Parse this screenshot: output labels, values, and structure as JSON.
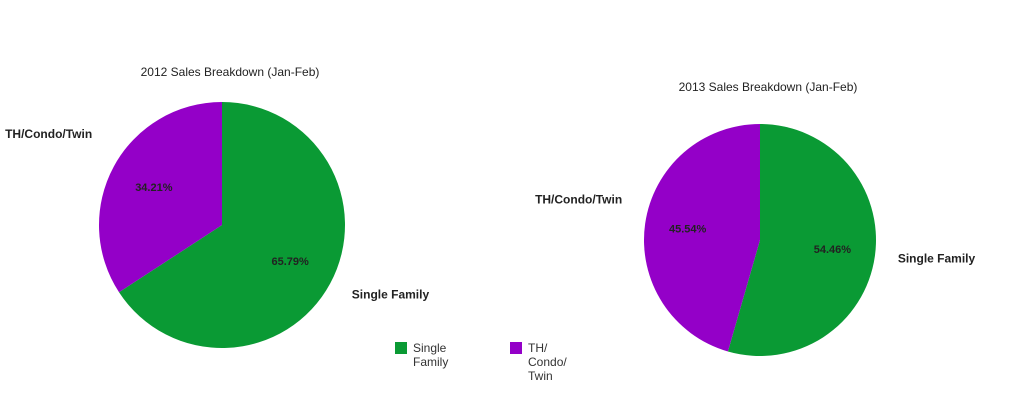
{
  "chart_data": [
    {
      "type": "pie",
      "title": "2012 Sales Breakdown (Jan-Feb)",
      "categories": [
        "Single Family",
        "TH/Condo/Twin"
      ],
      "values": [
        65.79,
        34.21
      ],
      "value_labels": [
        "65.79%",
        "34.21%"
      ],
      "colors": [
        "#0a9a34",
        "#9400c8"
      ],
      "legend": true
    },
    {
      "type": "pie",
      "title": "2013 Sales Breakdown (Jan-Feb)",
      "categories": [
        "Single Family",
        "TH/Condo/Twin"
      ],
      "values": [
        54.46,
        45.54
      ],
      "value_labels": [
        "54.46%",
        "45.54%"
      ],
      "colors": [
        "#0a9a34",
        "#9400c8"
      ]
    }
  ]
}
